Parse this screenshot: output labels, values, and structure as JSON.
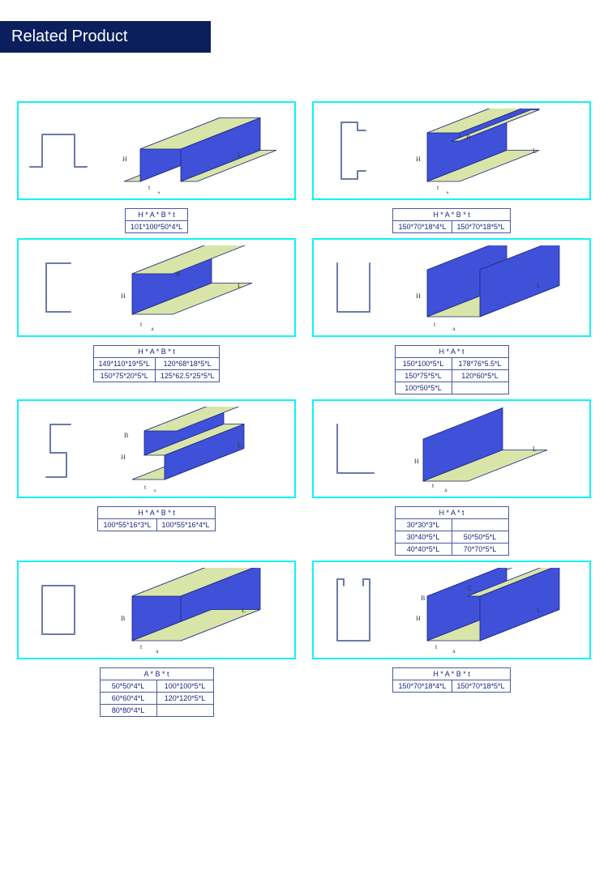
{
  "header": {
    "title": "Related Product"
  },
  "colors": {
    "header_bg": "#0a1f5c",
    "border": "#0ef5f5",
    "steel_face": "#3f51d8",
    "steel_top": "#d9e5a8",
    "steel_edge": "#1a237e",
    "outline": "#6b7aa8",
    "table_border": "#4a5a9e",
    "table_text": "#1a237e"
  },
  "products": [
    {
      "id": "omega",
      "table": {
        "header": "H * A * B * t",
        "cols": 1,
        "rows": [
          [
            "101*100*50*4*L"
          ]
        ]
      }
    },
    {
      "id": "c-lip",
      "table": {
        "header": "H * A * B * t",
        "cols": 2,
        "rows": [
          [
            "150*70*18*4*L",
            "150*70*18*5*L"
          ]
        ]
      }
    },
    {
      "id": "c-open",
      "table": {
        "header": "H * A * B * t",
        "cols": 2,
        "rows": [
          [
            "149*110*19*5*L",
            "120*68*18*5*L"
          ],
          [
            "150*75*20*5*L",
            "125*62.5*25*5*L"
          ]
        ]
      }
    },
    {
      "id": "u-channel",
      "table": {
        "header": "H * A * t",
        "cols": 2,
        "rows": [
          [
            "150*100*5*L",
            "178*76*5.5*L"
          ],
          [
            "150*75*5*L",
            "120*60*5*L"
          ],
          [
            "100*50*5*L",
            ""
          ]
        ]
      }
    },
    {
      "id": "z",
      "table": {
        "header": "H * A * B * t",
        "cols": 2,
        "rows": [
          [
            "100*55*16*3*L",
            "100*55*16*4*L"
          ]
        ]
      }
    },
    {
      "id": "angle",
      "table": {
        "header": "H * A * t",
        "cols": 2,
        "rows": [
          [
            "30*30*3*L",
            ""
          ],
          [
            "30*40*5*L",
            "50*50*5*L"
          ],
          [
            "40*40*5*L",
            "70*70*5*L"
          ]
        ]
      }
    },
    {
      "id": "square",
      "table": {
        "header": "A * B * t",
        "cols": 2,
        "rows": [
          [
            "50*50*4*L",
            "100*100*5*L"
          ],
          [
            "60*60*4*L",
            "120*120*5*L"
          ],
          [
            "80*80*4*L",
            ""
          ]
        ]
      }
    },
    {
      "id": "strut",
      "table": {
        "header": "H * A * B * t",
        "cols": 2,
        "rows": [
          [
            "150*70*18*4*L",
            "150*70*18*5*L"
          ]
        ]
      }
    }
  ]
}
